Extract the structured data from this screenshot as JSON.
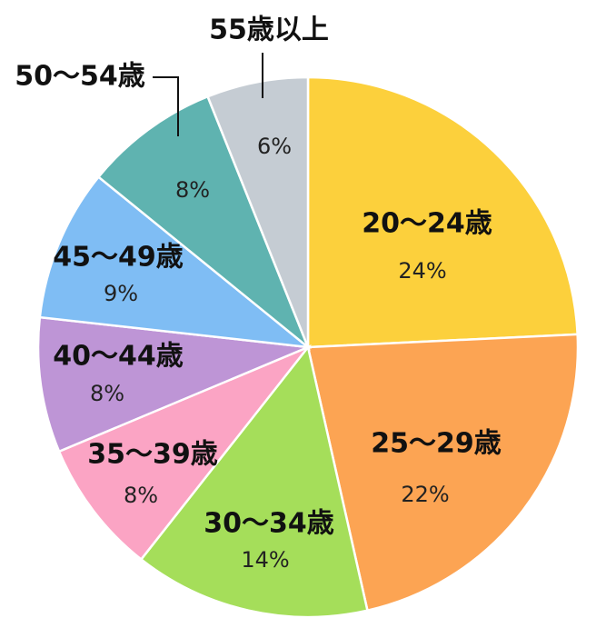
{
  "chart_data": {
    "type": "pie",
    "start_angle_deg": 0,
    "direction": "clockwise",
    "legend": "none",
    "slices": [
      {
        "label": "20〜24歳",
        "value": 24,
        "value_label": "24%",
        "color": "#FCD03C"
      },
      {
        "label": "25〜29歳",
        "value": 22,
        "value_label": "22%",
        "color": "#FCA453"
      },
      {
        "label": "30〜34歳",
        "value": 14,
        "value_label": "14%",
        "color": "#A5DE5A"
      },
      {
        "label": "35〜39歳",
        "value": 8,
        "value_label": "8%",
        "color": "#FBA4C4"
      },
      {
        "label": "40〜44歳",
        "value": 8,
        "value_label": "8%",
        "color": "#BE95D6"
      },
      {
        "label": "45〜49歳",
        "value": 9,
        "value_label": "9%",
        "color": "#7FBDF4"
      },
      {
        "label": "50〜54歳",
        "value": 8,
        "value_label": "8%",
        "color": "#5FB3B0"
      },
      {
        "label": "55歳以上",
        "value": 6,
        "value_label": "6%",
        "color": "#C5CCD3"
      }
    ]
  }
}
